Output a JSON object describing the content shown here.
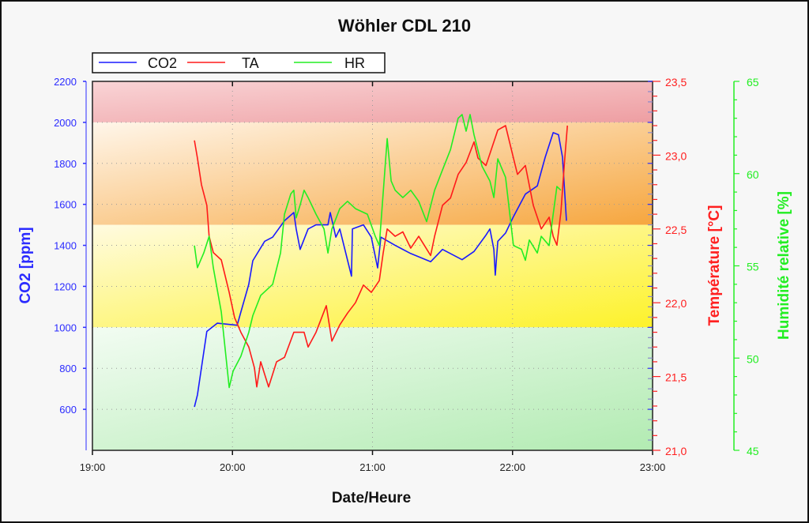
{
  "chart_data": {
    "type": "line",
    "title": "Wöhler CDL 210",
    "xlabel": "Date/Heure",
    "x_unit": "minutes since 19:00",
    "x_ticks": [
      "19:00",
      "20:00",
      "21:00",
      "22:00",
      "23:00"
    ],
    "xlim": [
      0,
      240
    ],
    "legend": {
      "placement": "top-left",
      "entries": [
        "CO2",
        "TA",
        "HR"
      ]
    },
    "grid": true,
    "axes": {
      "co2": {
        "label": "CO2 [ppm]",
        "ylim": [
          400,
          2200
        ],
        "ticks": [
          "2200",
          "2000",
          "1800",
          "1600",
          "1400",
          "1200",
          "1000",
          "800",
          "600"
        ],
        "color": "#2b2bff"
      },
      "temp": {
        "label": "Température [°C]",
        "ylim": [
          21.0,
          23.5
        ],
        "ticks": [
          "23,5",
          "23,0",
          "22,5",
          "22,0",
          "21,5",
          "21,0"
        ],
        "color": "#ff2020"
      },
      "hr": {
        "label": "Humidité relative [%]",
        "ylim": [
          45,
          65
        ],
        "ticks": [
          "65",
          "60",
          "55",
          "50",
          "45"
        ],
        "color": "#22ee22"
      }
    },
    "bands_co2": [
      {
        "from": 2000,
        "to": 2200,
        "color": "#f2b0b3"
      },
      {
        "from": 1500,
        "to": 2000,
        "color": "#f7b25c"
      },
      {
        "from": 1000,
        "to": 1500,
        "color": "#fdf54a"
      },
      {
        "from": 400,
        "to": 1000,
        "color": "#c4efc4"
      }
    ],
    "series": [
      {
        "name": "CO2",
        "axis": "co2",
        "color": "#1a1aff",
        "points": [
          [
            43.7,
            612
          ],
          [
            45,
            670
          ],
          [
            49,
            980
          ],
          [
            53.5,
            1020
          ],
          [
            62,
            1010
          ],
          [
            63.6,
            1075
          ],
          [
            67,
            1210
          ],
          [
            68.7,
            1325
          ],
          [
            73.8,
            1420
          ],
          [
            77.2,
            1440
          ],
          [
            82.3,
            1520
          ],
          [
            86.3,
            1560
          ],
          [
            87.3,
            1480
          ],
          [
            89,
            1380
          ],
          [
            92.4,
            1480
          ],
          [
            95.8,
            1500
          ],
          [
            100.9,
            1500
          ],
          [
            101.9,
            1560
          ],
          [
            104.3,
            1440
          ],
          [
            106,
            1480
          ],
          [
            111,
            1250
          ],
          [
            111.4,
            1480
          ],
          [
            116.1,
            1500
          ],
          [
            119.5,
            1440
          ],
          [
            122.2,
            1290
          ],
          [
            123.6,
            1440
          ],
          [
            129.7,
            1400
          ],
          [
            136.4,
            1360
          ],
          [
            144.9,
            1320
          ],
          [
            150,
            1380
          ],
          [
            158.4,
            1330
          ],
          [
            163.5,
            1370
          ],
          [
            168.6,
            1450
          ],
          [
            170.3,
            1480
          ],
          [
            172,
            1380
          ],
          [
            172.6,
            1255
          ],
          [
            173.7,
            1420
          ],
          [
            177,
            1460
          ],
          [
            180.4,
            1540
          ],
          [
            185.5,
            1650
          ],
          [
            190.6,
            1690
          ],
          [
            194,
            1830
          ],
          [
            197.4,
            1950
          ],
          [
            199.7,
            1940
          ],
          [
            201.4,
            1830
          ],
          [
            203.1,
            1520
          ]
        ]
      },
      {
        "name": "TA",
        "axis": "temp",
        "color": "#ff1a1a",
        "points": [
          [
            43.7,
            23.1
          ],
          [
            45,
            22.98
          ],
          [
            46.7,
            22.8
          ],
          [
            49,
            22.66
          ],
          [
            50,
            22.45
          ],
          [
            51.8,
            22.34
          ],
          [
            55.2,
            22.29
          ],
          [
            58.6,
            22.07
          ],
          [
            60.9,
            21.9
          ],
          [
            63.6,
            21.8
          ],
          [
            67,
            21.7
          ],
          [
            69.4,
            21.56
          ],
          [
            70.4,
            21.43
          ],
          [
            72.1,
            21.6
          ],
          [
            75.5,
            21.43
          ],
          [
            78.9,
            21.6
          ],
          [
            82.3,
            21.63
          ],
          [
            86.3,
            21.8
          ],
          [
            90.7,
            21.8
          ],
          [
            92.4,
            21.7
          ],
          [
            95.8,
            21.8
          ],
          [
            100.2,
            21.98
          ],
          [
            102.6,
            21.74
          ],
          [
            106,
            21.85
          ],
          [
            109.3,
            21.93
          ],
          [
            112.7,
            22.0
          ],
          [
            116.1,
            22.12
          ],
          [
            119.5,
            22.07
          ],
          [
            122.9,
            22.15
          ],
          [
            124.6,
            22.34
          ],
          [
            126.3,
            22.5
          ],
          [
            129.7,
            22.45
          ],
          [
            133,
            22.48
          ],
          [
            136.4,
            22.37
          ],
          [
            139.8,
            22.45
          ],
          [
            144.9,
            22.32
          ],
          [
            146.6,
            22.45
          ],
          [
            150,
            22.66
          ],
          [
            153.4,
            22.71
          ],
          [
            156.7,
            22.87
          ],
          [
            160.1,
            22.95
          ],
          [
            163.5,
            23.09
          ],
          [
            165.2,
            22.98
          ],
          [
            168.6,
            22.93
          ],
          [
            173.7,
            23.17
          ],
          [
            177,
            23.2
          ],
          [
            180.4,
            22.98
          ],
          [
            182.1,
            22.87
          ],
          [
            185.5,
            22.93
          ],
          [
            188.9,
            22.66
          ],
          [
            192.3,
            22.5
          ],
          [
            195.7,
            22.58
          ],
          [
            197.4,
            22.45
          ],
          [
            199,
            22.39
          ],
          [
            200.7,
            22.61
          ],
          [
            202.4,
            22.98
          ],
          [
            203.5,
            23.2
          ]
        ]
      },
      {
        "name": "HR",
        "axis": "hr",
        "color": "#22ee22",
        "points": [
          [
            43.7,
            56.1
          ],
          [
            45,
            54.9
          ],
          [
            47.7,
            55.7
          ],
          [
            50,
            56.6
          ],
          [
            51.8,
            54.9
          ],
          [
            55.2,
            52.5
          ],
          [
            58.6,
            48.4
          ],
          [
            60.3,
            49.3
          ],
          [
            63.6,
            50.1
          ],
          [
            67,
            51.4
          ],
          [
            68.7,
            52.3
          ],
          [
            72.1,
            53.4
          ],
          [
            77.2,
            54
          ],
          [
            80.6,
            55.7
          ],
          [
            82.3,
            57.8
          ],
          [
            85,
            58.9
          ],
          [
            86.3,
            59.1
          ],
          [
            87.3,
            57.6
          ],
          [
            89,
            58.3
          ],
          [
            90.7,
            59.1
          ],
          [
            92.4,
            58.7
          ],
          [
            95.8,
            57.8
          ],
          [
            99.2,
            57
          ],
          [
            100.9,
            55.7
          ],
          [
            102.6,
            57
          ],
          [
            106,
            58.1
          ],
          [
            109.3,
            58.5
          ],
          [
            112.7,
            58.1
          ],
          [
            117.8,
            57.8
          ],
          [
            121.2,
            56.6
          ],
          [
            122.9,
            56.1
          ],
          [
            126.3,
            61.9
          ],
          [
            128,
            59.6
          ],
          [
            129.7,
            59.1
          ],
          [
            133,
            58.7
          ],
          [
            136.4,
            59.1
          ],
          [
            139.8,
            58.5
          ],
          [
            143.2,
            57.4
          ],
          [
            146.6,
            59.1
          ],
          [
            150,
            60.2
          ],
          [
            153.4,
            61.3
          ],
          [
            156.7,
            63
          ],
          [
            158.4,
            63.2
          ],
          [
            160.1,
            62.3
          ],
          [
            161.8,
            63.2
          ],
          [
            163.5,
            62.1
          ],
          [
            166.9,
            60.4
          ],
          [
            170.3,
            59.6
          ],
          [
            172,
            58.7
          ],
          [
            173.7,
            60.8
          ],
          [
            177,
            59.8
          ],
          [
            180.4,
            56.1
          ],
          [
            183.8,
            55.9
          ],
          [
            185.5,
            55.3
          ],
          [
            187.2,
            56.4
          ],
          [
            190.6,
            55.7
          ],
          [
            192.3,
            56.6
          ],
          [
            195.7,
            56.1
          ],
          [
            197.4,
            57.8
          ],
          [
            199,
            59.3
          ],
          [
            200.7,
            59.1
          ]
        ]
      }
    ]
  }
}
